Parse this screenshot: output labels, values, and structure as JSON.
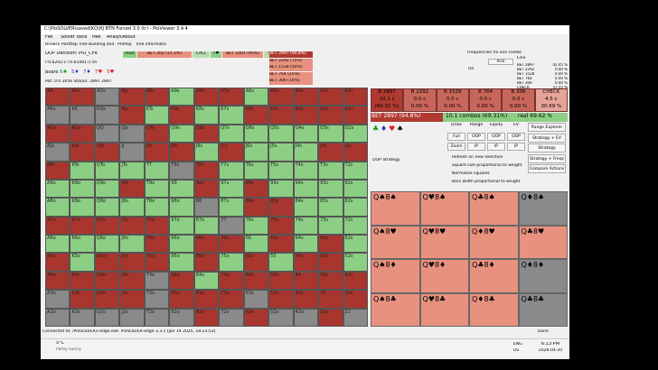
{
  "window": {
    "title": "C:\\PioSOLVER\\saved\\KQ\\HJ BTN Forced 3.0 (tr) - PioViewer 3.4.4",
    "menu": [
      "File",
      "Solver",
      "Tools",
      "Tree",
      "Analysis",
      "About"
    ],
    "tabs": [
      "Browser",
      "Postflop Tree Building and Calculations",
      "Preflop",
      "Tree information"
    ]
  },
  "decision": {
    "player": "OOP Decision:  PIO_CFR",
    "line": "r:0:b202:c:Th:b1001:c:5h",
    "board_label": "Board",
    "board": [
      "6♣",
      "5♦",
      "7♦",
      "T♥",
      "5♥"
    ],
    "pot": "Pot: 0 0 3056  Stacks: 2897 2897"
  },
  "tree": [
    "Root",
    "BET 202 (31.1%)",
    "CALL",
    "T♥",
    "BET 1001 (95%)",
    "CALL",
    "5♥"
  ],
  "actions": [
    "BET 2897 (94.8%)",
    "BET 2292 (75%)",
    "BET 1528 (50%)",
    "BET 764 (25%)",
    "BET 306 (10%)"
  ],
  "freq": {
    "title": "Frequencies VS one combo",
    "pick": "Pick",
    "on": "On",
    "header": "Line",
    "rows": [
      [
        "BET 2897",
        "42.45 %"
      ],
      [
        "BET 2292",
        "0.00 %"
      ],
      [
        "BET 1528",
        "0.00 %"
      ],
      [
        "BET 764",
        "0.00 %"
      ],
      [
        "BET 306",
        "0.00 %"
      ],
      [
        "CHECK",
        "57.55 %"
      ]
    ]
  },
  "grid": {
    "hands": [
      [
        "AA",
        "AKs",
        "AQs",
        "AJs",
        "ATs",
        "A9s",
        "A8s",
        "A7s",
        "A6s",
        "A5s",
        "A4s",
        "A3s",
        "A2s"
      ],
      [
        "AKo",
        "KK",
        "KQs",
        "KJs",
        "KTs",
        "K9s",
        "K8s",
        "K7s",
        "K6s",
        "K5s",
        "K4s",
        "K3s",
        "K2s"
      ],
      [
        "AQo",
        "KQo",
        "QQ",
        "QJs",
        "QTs",
        "Q9s",
        "Q8s",
        "Q7s",
        "Q6s",
        "Q5s",
        "Q4s",
        "Q3s",
        "Q2s"
      ],
      [
        "AJo",
        "KJo",
        "QJo",
        "JJ",
        "JTs",
        "J9s",
        "J8s",
        "J7s",
        "J6s",
        "J5s",
        "J4s",
        "J3s",
        "J2s"
      ],
      [
        "ATo",
        "KTo",
        "QTo",
        "JTo",
        "TT",
        "T9s",
        "T8s",
        "T7s",
        "T6s",
        "T5s",
        "T4s",
        "T3s",
        "T2s"
      ],
      [
        "A9o",
        "K9o",
        "Q9o",
        "J9o",
        "T9o",
        "99",
        "98s",
        "97s",
        "96s",
        "95s",
        "94s",
        "93s",
        "92s"
      ],
      [
        "A8o",
        "K8o",
        "Q8o",
        "J8o",
        "T8o",
        "98o",
        "88",
        "87s",
        "86s",
        "85s",
        "84s",
        "83s",
        "82s"
      ],
      [
        "A7o",
        "K7o",
        "Q7o",
        "J7o",
        "T7o",
        "97o",
        "87o",
        "77",
        "76s",
        "75s",
        "74s",
        "73s",
        "72s"
      ],
      [
        "A6o",
        "K6o",
        "Q6o",
        "J6o",
        "T6o",
        "96o",
        "86o",
        "76o",
        "66",
        "65s",
        "64s",
        "63s",
        "62s"
      ],
      [
        "A5o",
        "K5o",
        "Q5o",
        "J5o",
        "T5o",
        "95o",
        "85o",
        "75o",
        "65o",
        "55",
        "54s",
        "53s",
        "52s"
      ],
      [
        "A4o",
        "K4o",
        "Q4o",
        "J4o",
        "T4o",
        "94o",
        "84o",
        "74o",
        "64o",
        "54o",
        "44",
        "43s",
        "42s"
      ],
      [
        "A3o",
        "K3o",
        "Q3o",
        "J3o",
        "T3o",
        "93o",
        "83o",
        "73o",
        "63o",
        "53o",
        "43o",
        "33",
        "32s"
      ],
      [
        "A2o",
        "K2o",
        "Q2o",
        "J2o",
        "T2o",
        "92o",
        "82o",
        "72o",
        "62o",
        "52o",
        "42o",
        "32o",
        "22"
      ]
    ],
    "cell_colors": [
      "rrkrrgrrgrrrr",
      "kkkrgrggrrrrr",
      "rrkkrgrgggggg",
      "krrkrrgrgggrr",
      "rggggkrgggggg",
      "gggrggrgrgggg",
      "ggggggkgrrggg",
      "rrrrrggkgrggg",
      "ggggrgrrgrgrg",
      "rgrrrgrgrgrrg",
      "rrrrkrgrrrrrr",
      "krrrkrrrkrrrr",
      "kkkkkkrkrkkrk"
    ],
    "palette": {
      "r": "#a8352e",
      "g": "#8ccf84",
      "k": "#8a8a8a"
    }
  },
  "bets": [
    {
      "name": "B 2897",
      "combos": "10.1 c",
      "pct": "(69.31 %)",
      "color": "#b03a30"
    },
    {
      "name": "B 2292",
      "combos": "0.0 c",
      "pct": "0.00 %",
      "color": "#c9665a"
    },
    {
      "name": "B 1528",
      "combos": "0.0 c",
      "pct": "0.00 %",
      "color": "#c9665a"
    },
    {
      "name": "B 764",
      "combos": "0.0 c",
      "pct": "0.00 %",
      "color": "#c9665a"
    },
    {
      "name": "B 306",
      "combos": "0.0 c",
      "pct": "0.00 %",
      "color": "#c9665a"
    },
    {
      "name": "CHECK",
      "combos": "4.5 c",
      "pct": "30.69 %",
      "color": "#e6a397"
    }
  ],
  "summary": {
    "bet": "BET 2897 (94.8%)",
    "combos": "10.1 combos (69.31%)",
    "real": "real  69.62 %"
  },
  "controls": {
    "suits": [
      "♣",
      "♦",
      "♥",
      "♠"
    ],
    "headers": [
      "Draw",
      "Range",
      "Equity",
      "EV"
    ],
    "row1": [
      "Full",
      "OOP",
      "OOP",
      "OOP"
    ],
    "row2": [
      "Zoom",
      "IP",
      "IP",
      "IP"
    ],
    "side": [
      "Range Explorer",
      "Strategy + EV",
      "Strategy",
      "Strategy + Freqs",
      "Compare Actions"
    ],
    "mode": "OOP Strategy",
    "checks": [
      "Refresh on new selection",
      "Square size proportional to weight",
      "Normalize squares",
      "Bars width proportional to weight"
    ]
  },
  "combos": {
    "labels": [
      [
        "Q♠8♠",
        "Q♥8♠",
        "Q♣8♠",
        "Q♦8♠"
      ],
      [
        "Q♠8♥",
        "Q♥8♥",
        "Q♦8♥",
        "Q♣8♥"
      ],
      [
        "Q♠8♦",
        "Q♥8♦",
        "Q♣8♦",
        "Q♦8♦"
      ],
      [
        "Q♠8♣",
        "Q♥8♣",
        "Q♦8♣",
        "Q♣8♣"
      ]
    ],
    "colors": [
      [
        "#e8917f",
        "#e8917f",
        "#e8917f",
        "#8a8a8a"
      ],
      [
        "#e8917f",
        "#e8917f",
        "#e8917f",
        "#e8917f"
      ],
      [
        "#e8917f",
        "#e8917f",
        "#e8917f",
        "#8a8a8a"
      ],
      [
        "#e8917f",
        "#e8917f",
        "#e8917f",
        "#8a8a8a"
      ]
    ]
  },
  "status": {
    "left": "Connected to: /PioSOLVER3-edge.exe. PioSOLVER-edge 3.3.1 (Jan 14 2025, 18:23:53)",
    "right": "Done"
  },
  "taskbar": {
    "temp": "5°C",
    "weather": "Partly sunny",
    "lang": "ENG",
    "region": "US",
    "time": "6:13 PM",
    "date": "2026-04-20"
  }
}
